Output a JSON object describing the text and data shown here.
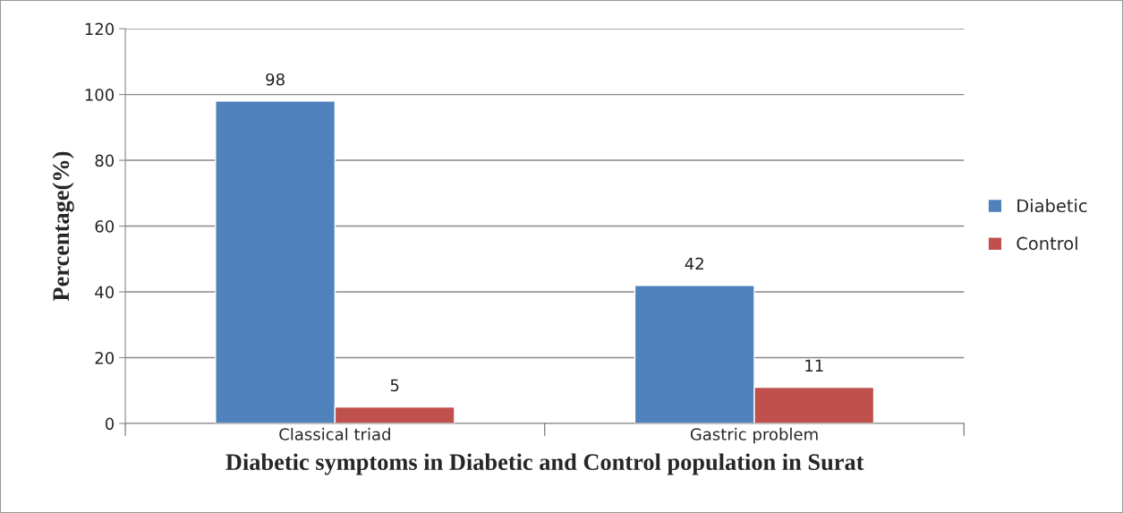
{
  "chart_data": {
    "type": "bar",
    "xlabel": "Diabetic symptoms in Diabetic and Control population in Surat",
    "ylabel": "Percentage(%)",
    "categories": [
      "Classical triad",
      "Gastric problem"
    ],
    "series": [
      {
        "name": "Diabetic",
        "color": "#4f81bd",
        "values": [
          98,
          42
        ]
      },
      {
        "name": "Control",
        "color": "#c0504d",
        "values": [
          5,
          11
        ]
      }
    ],
    "ylim": [
      0,
      120
    ],
    "yticks": [
      0,
      20,
      40,
      60,
      80,
      100,
      120
    ],
    "grid": "y",
    "legend": "right",
    "data_labels": true
  }
}
